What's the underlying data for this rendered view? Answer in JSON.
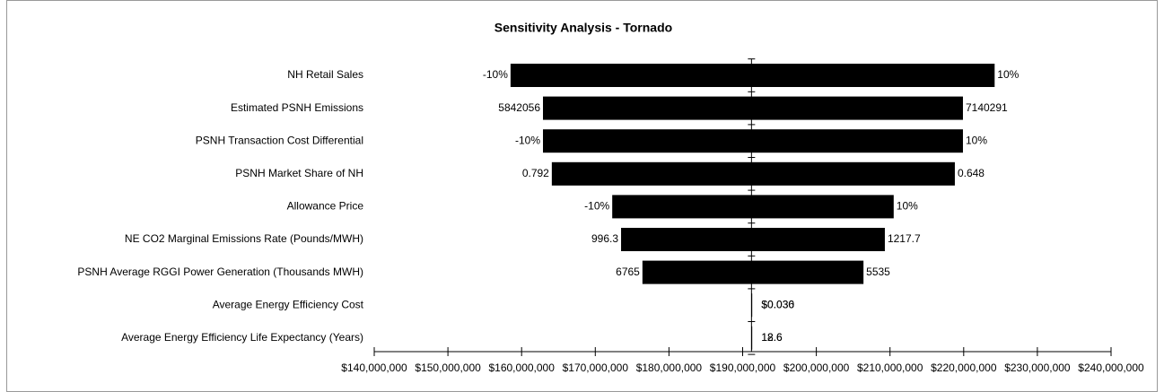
{
  "chart_data": {
    "type": "tornado",
    "title": "Sensitivity Analysis  -  Tornado",
    "categories": [
      "NH Retail Sales",
      "Estimated PSNH Emissions",
      "PSNH Transaction Cost Differential",
      "PSNH Market Share of NH",
      "Allowance Price",
      "NE CO2 Marginal Emissions Rate (Pounds/MWH)",
      "PSNH Average RGGI Power Generation (Thousands MWH)",
      "Average Energy Efficiency Cost",
      "Average Energy Efficiency Life Expectancy (Years)"
    ],
    "base_value": 191200000,
    "low_values": [
      158500000,
      162900000,
      162900000,
      164100000,
      172300000,
      173500000,
      176400000,
      191300000,
      191300000
    ],
    "low_labels": [
      "-10%",
      "5842056",
      "-10%",
      "0.792",
      "-10%",
      "996.3",
      "6765",
      "$0.030",
      "12.6"
    ],
    "high_values": [
      224200000,
      219900000,
      219900000,
      218800000,
      210500000,
      209300000,
      206400000,
      191250000,
      191250000
    ],
    "high_labels": [
      "10%",
      "7140291",
      "10%",
      "0.648",
      "10%",
      "1217.7",
      "5535",
      "$0.036",
      "18.6"
    ],
    "color": "#000000",
    "xlim": [
      140000000,
      240000000
    ],
    "xticks": [
      {
        "value": 140000000,
        "label": "$140,000,000"
      },
      {
        "value": 150000000,
        "label": "$150,000,000"
      },
      {
        "value": 160000000,
        "label": "$160,000,000"
      },
      {
        "value": 170000000,
        "label": "$170,000,000"
      },
      {
        "value": 180000000,
        "label": "$180,000,000"
      },
      {
        "value": 190000000,
        "label": "$190,000,000"
      },
      {
        "value": 200000000,
        "label": "$200,000,000"
      },
      {
        "value": 210000000,
        "label": "$210,000,000"
      },
      {
        "value": 220000000,
        "label": "$220,000,000"
      },
      {
        "value": 230000000,
        "label": "$230,000,000"
      },
      {
        "value": 240000000,
        "label": "$240,000,000"
      }
    ]
  }
}
